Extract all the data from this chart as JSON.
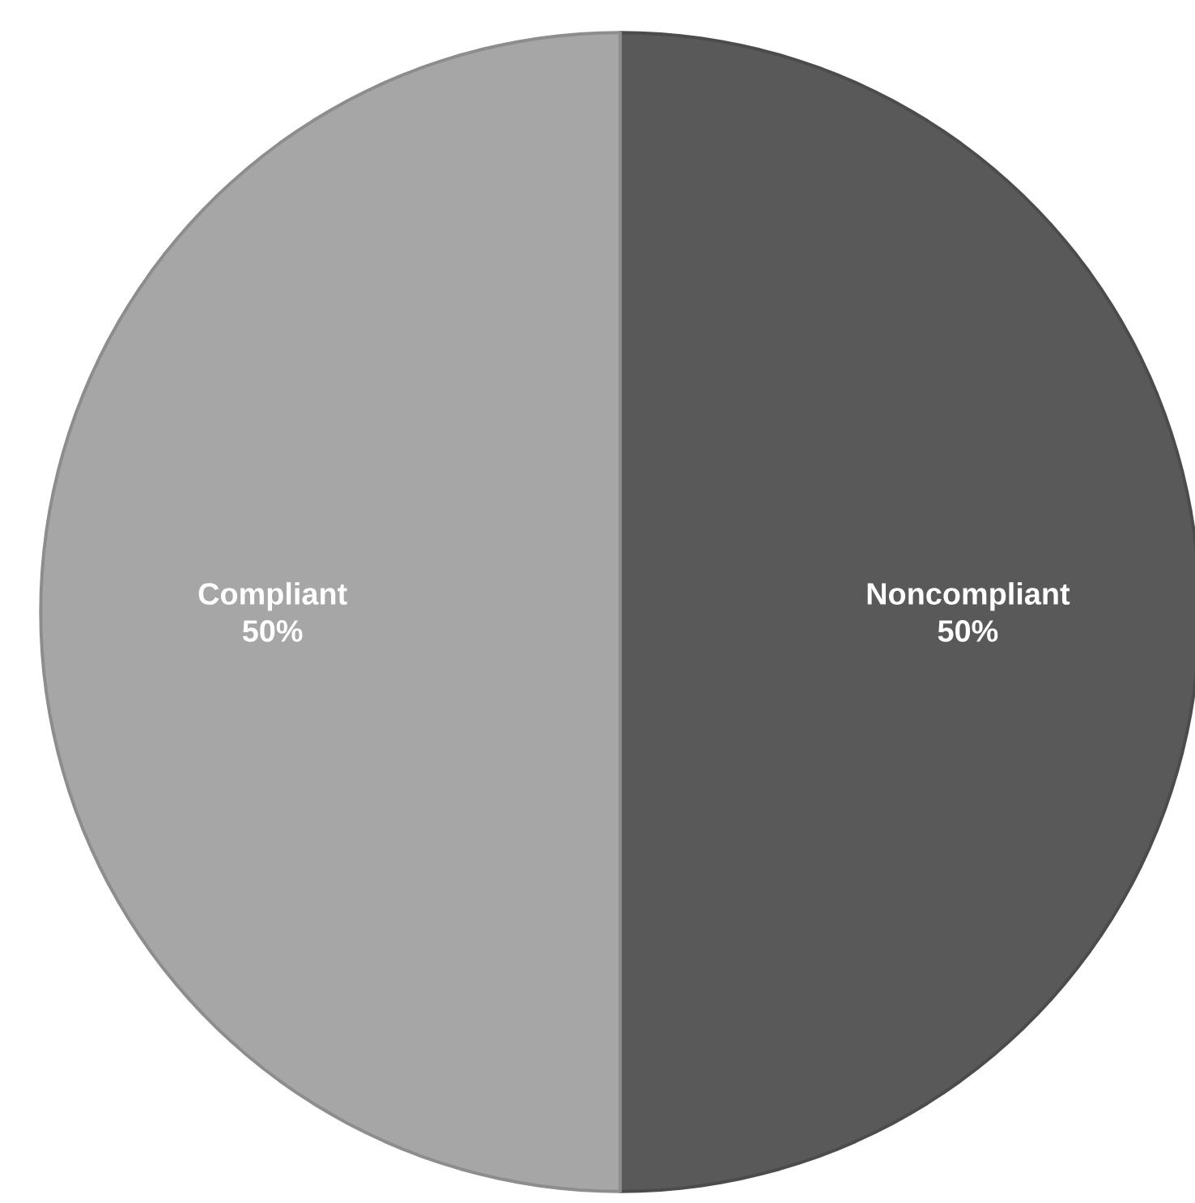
{
  "chart_data": {
    "type": "pie",
    "categories": [
      "Noncompliant",
      "Compliant"
    ],
    "values": [
      50,
      50
    ],
    "colors": [
      "#595959",
      "#a6a6a6"
    ],
    "value_labels": [
      "50%",
      "50%"
    ]
  }
}
